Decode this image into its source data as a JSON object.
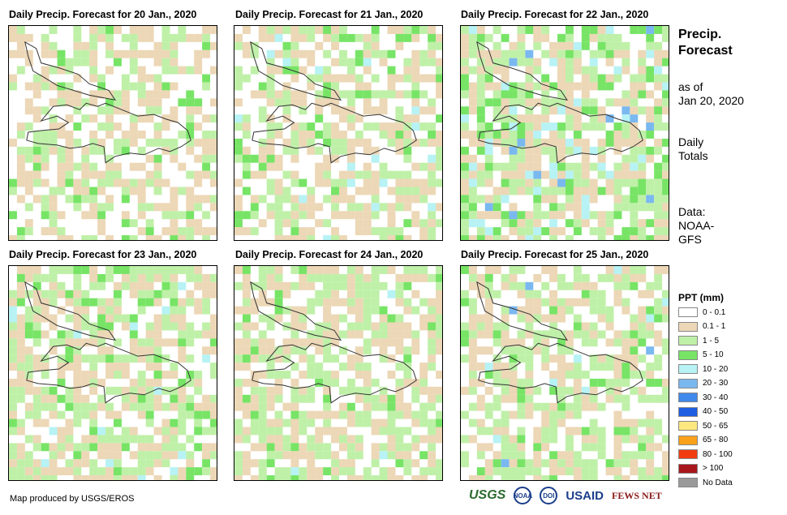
{
  "panels": [
    {
      "title": "Daily Precip. Forecast for 20 Jan., 2020"
    },
    {
      "title": "Daily Precip. Forecast for 21 Jan., 2020"
    },
    {
      "title": "Daily Precip. Forecast for 22 Jan., 2020"
    },
    {
      "title": "Daily Precip. Forecast for 23 Jan., 2020"
    },
    {
      "title": "Daily Precip. Forecast for 24 Jan., 2020"
    },
    {
      "title": "Daily Precip. Forecast for 25 Jan., 2020"
    }
  ],
  "side": {
    "title_line1": "Precip.",
    "title_line2": "Forecast",
    "asof_line1": "as of",
    "asof_line2": "Jan 20, 2020",
    "daily_line1": "Daily",
    "daily_line2": "Totals",
    "data_line1": "Data:",
    "data_line2": "NOAA-",
    "data_line3": "GFS"
  },
  "legend": {
    "title": "PPT (mm)",
    "items": [
      {
        "label": "0 - 0.1",
        "color": "#ffffff"
      },
      {
        "label": "0.1 - 1",
        "color": "#ecd7b6"
      },
      {
        "label": "1 - 5",
        "color": "#bff0a8"
      },
      {
        "label": "5 - 10",
        "color": "#77e466"
      },
      {
        "label": "10 - 20",
        "color": "#b7f2f4"
      },
      {
        "label": "20 - 30",
        "color": "#7ab8f0"
      },
      {
        "label": "30 - 40",
        "color": "#3f88ec"
      },
      {
        "label": "40 - 50",
        "color": "#1f5ee0"
      },
      {
        "label": "50 - 65",
        "color": "#fde77f"
      },
      {
        "label": "65 - 80",
        "color": "#f9a11b"
      },
      {
        "label": "80 - 100",
        "color": "#f23c10"
      },
      {
        "label": "> 100",
        "color": "#a8161b"
      },
      {
        "label": "No Data",
        "color": "#9a9a9a"
      }
    ]
  },
  "footer": {
    "credit": "Map produced by USGS/EROS",
    "logos": [
      "USGS",
      "NOAA",
      "DOI",
      "USAID",
      "FEWS NET"
    ]
  }
}
